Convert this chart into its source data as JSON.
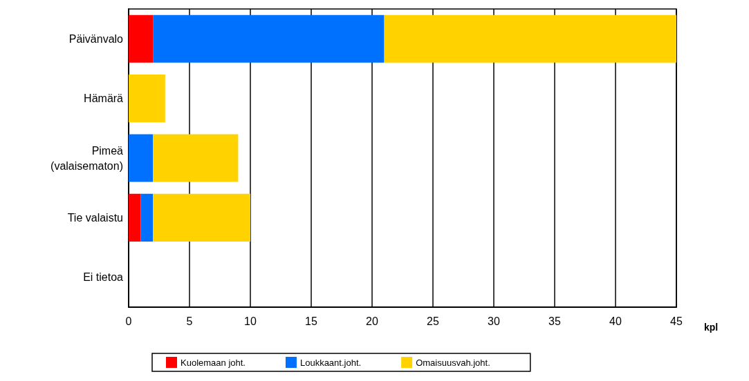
{
  "chart_data": {
    "type": "bar",
    "orientation": "horizontal",
    "stacked": true,
    "xlabel": "kpl",
    "categories": [
      "Päivänvalo",
      "Hämärä",
      "Pimeä\n(valaisematon)",
      "Tie valaistu",
      "Ei tietoa"
    ],
    "series": [
      {
        "name": "Kuolemaan joht.",
        "color": "#ff0000",
        "values": [
          2,
          0,
          0,
          1,
          0
        ]
      },
      {
        "name": "Loukkaant.joht.",
        "color": "#0070ff",
        "values": [
          19,
          0,
          2,
          1,
          0
        ]
      },
      {
        "name": "Omaisuusvah.joht.",
        "color": "#ffd200",
        "values": [
          24,
          3,
          7,
          8,
          0
        ]
      }
    ],
    "xlim": [
      0,
      45
    ],
    "xticks": [
      0,
      5,
      10,
      15,
      20,
      25,
      30,
      35,
      40,
      45
    ],
    "grid": "x",
    "legend": "bottom"
  }
}
